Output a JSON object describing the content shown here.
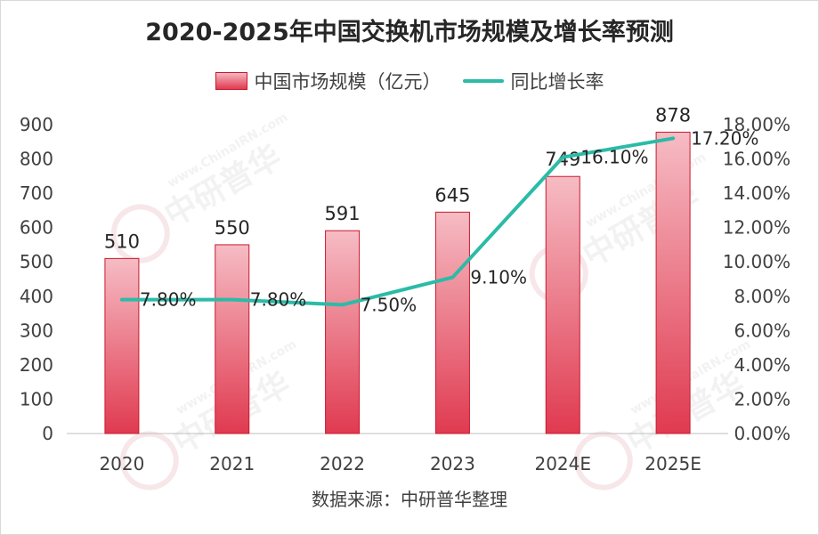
{
  "chart_data": {
    "type": "bar",
    "title": "2020-2025年中国交换机市场规模及增长率预测",
    "categories": [
      "2020",
      "2021",
      "2022",
      "2023",
      "2024E",
      "2025E"
    ],
    "series": [
      {
        "name": "中国市场规模（亿元）",
        "type": "bar",
        "axis": "left",
        "values": [
          510,
          550,
          591,
          645,
          749,
          878
        ],
        "labels": [
          "510",
          "550",
          "591",
          "645",
          "749",
          "878"
        ]
      },
      {
        "name": "同比增长率",
        "type": "line",
        "axis": "right",
        "values": [
          7.8,
          7.8,
          7.5,
          9.1,
          16.1,
          17.2
        ],
        "labels": [
          "7.80%",
          "7.80%",
          "7.50%",
          "9.10%",
          "16.10%",
          "17.20%"
        ]
      }
    ],
    "ylim": [
      0,
      900
    ],
    "yticks": [
      "0",
      "100",
      "200",
      "300",
      "400",
      "500",
      "600",
      "700",
      "800",
      "900"
    ],
    "y2lim": [
      0,
      18
    ],
    "y2ticks": [
      "0.00%",
      "2.00%",
      "4.00%",
      "6.00%",
      "8.00%",
      "10.00%",
      "12.00%",
      "14.00%",
      "16.00%",
      "18.00%"
    ],
    "legend_position": "top-center",
    "grid": false,
    "bar_color": "#e03a50",
    "line_color": "#2bbba7"
  },
  "source": "数据来源：中研普华整理",
  "watermark": "中研普华 www.ChinaIRN.com CIRN"
}
